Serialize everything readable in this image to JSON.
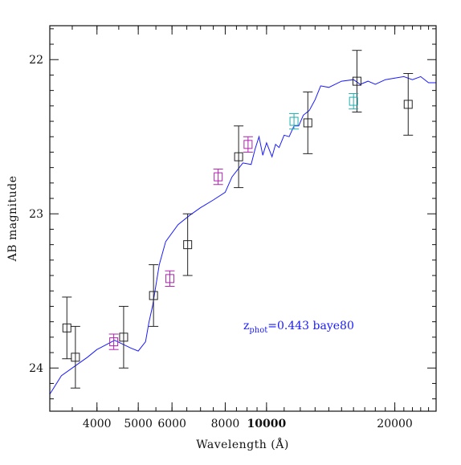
{
  "chart_data": {
    "type": "scatter",
    "xlabel": "Wavelength (Å)",
    "ylabel": "AB magnitude",
    "x_scale": "log",
    "xlim": [
      3100,
      25000
    ],
    "ylim": [
      24.28,
      21.78
    ],
    "y_inverted": true,
    "x_ticks": [
      4000,
      5000,
      6000,
      8000,
      10000,
      20000
    ],
    "x_tick_labels": [
      "4000",
      "5000",
      "6000",
      "8000",
      "10000",
      "20000"
    ],
    "y_ticks": [
      22,
      23,
      24
    ],
    "y_tick_labels": [
      "22",
      "23",
      "24"
    ],
    "grid": false,
    "colors": {
      "model": "#1a1aff",
      "black": "#222222",
      "magenta": "#b020b0",
      "cyan": "#20b0b0"
    },
    "annotation": {
      "prefix": "z",
      "subscript": "phot",
      "text": "=0.443 baye80",
      "color": "#1a1aff"
    },
    "series": [
      {
        "color_key": "black",
        "points": [
          {
            "x": 3400,
            "y": 23.74,
            "err": 0.2
          },
          {
            "x": 3560,
            "y": 23.93,
            "err": 0.2
          },
          {
            "x": 4620,
            "y": 23.8,
            "err": 0.2
          },
          {
            "x": 5430,
            "y": 23.53,
            "err": 0.2
          },
          {
            "x": 6530,
            "y": 23.2,
            "err": 0.2
          },
          {
            "x": 8600,
            "y": 22.63,
            "err": 0.2
          },
          {
            "x": 12500,
            "y": 22.41,
            "err": 0.2
          },
          {
            "x": 16300,
            "y": 22.14,
            "err": 0.2
          },
          {
            "x": 21500,
            "y": 22.29,
            "err": 0.2
          }
        ]
      },
      {
        "color_key": "magenta",
        "points": [
          {
            "x": 4380,
            "y": 23.83,
            "err": 0.05
          },
          {
            "x": 5930,
            "y": 23.42,
            "err": 0.05
          },
          {
            "x": 7700,
            "y": 22.76,
            "err": 0.05
          },
          {
            "x": 9050,
            "y": 22.55,
            "err": 0.05
          }
        ]
      },
      {
        "color_key": "cyan",
        "points": [
          {
            "x": 11600,
            "y": 22.4,
            "err": 0.05
          },
          {
            "x": 16000,
            "y": 22.27,
            "err": 0.05
          }
        ]
      }
    ],
    "model_sed": {
      "x": [
        3100,
        3300,
        3500,
        3800,
        4000,
        4400,
        4800,
        5000,
        5200,
        5300,
        5400,
        5600,
        5800,
        6200,
        6600,
        7000,
        7500,
        8000,
        8300,
        8800,
        9200,
        9400,
        9600,
        9800,
        10000,
        10300,
        10500,
        10700,
        11000,
        11300,
        11600,
        11900,
        12200,
        12600,
        13000,
        13400,
        14000,
        15000,
        16000,
        16600,
        17300,
        18000,
        19000,
        20000,
        21000,
        22000,
        23000,
        24000,
        25000
      ],
      "y": [
        24.17,
        24.05,
        24.0,
        23.93,
        23.88,
        23.82,
        23.87,
        23.89,
        23.83,
        23.7,
        23.6,
        23.33,
        23.18,
        23.07,
        23.01,
        22.96,
        22.91,
        22.86,
        22.76,
        22.67,
        22.68,
        22.58,
        22.5,
        22.62,
        22.54,
        22.63,
        22.55,
        22.57,
        22.49,
        22.5,
        22.43,
        22.43,
        22.36,
        22.33,
        22.26,
        22.17,
        22.18,
        22.14,
        22.13,
        22.16,
        22.14,
        22.16,
        22.13,
        22.12,
        22.11,
        22.13,
        22.11,
        22.15,
        22.15
      ]
    }
  }
}
